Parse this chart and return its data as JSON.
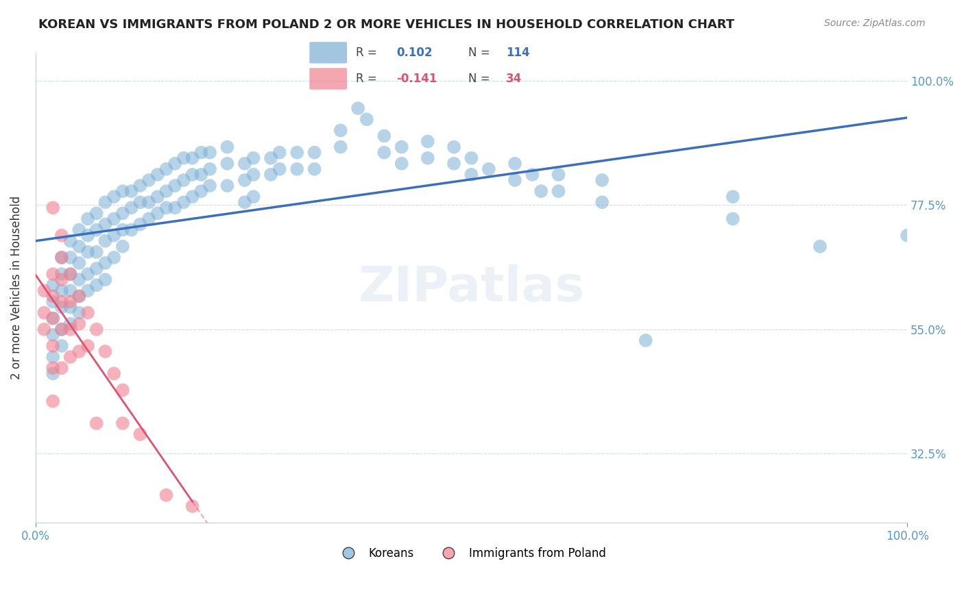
{
  "title": "KOREAN VS IMMIGRANTS FROM POLAND 2 OR MORE VEHICLES IN HOUSEHOLD CORRELATION CHART",
  "source": "Source: ZipAtlas.com",
  "ylabel": "2 or more Vehicles in Household",
  "xmin": 0.0,
  "xmax": 1.0,
  "ymin": 0.2,
  "ymax": 1.05,
  "yticks": [
    0.325,
    0.55,
    0.775,
    1.0
  ],
  "ytick_labels": [
    "32.5%",
    "55.0%",
    "77.5%",
    "100.0%"
  ],
  "xtick_labels": [
    "0.0%",
    "100.0%"
  ],
  "xticks": [
    0.0,
    1.0
  ],
  "korean_color": "#7bafd4",
  "poland_color": "#f08090",
  "trendline_korean_color": "#3a6fba",
  "trendline_poland_color": "#e05070",
  "watermark": "ZIPatlas",
  "korean_points": [
    [
      0.02,
      0.63
    ],
    [
      0.02,
      0.6
    ],
    [
      0.02,
      0.57
    ],
    [
      0.02,
      0.54
    ],
    [
      0.02,
      0.5
    ],
    [
      0.02,
      0.47
    ],
    [
      0.03,
      0.68
    ],
    [
      0.03,
      0.65
    ],
    [
      0.03,
      0.62
    ],
    [
      0.03,
      0.59
    ],
    [
      0.03,
      0.55
    ],
    [
      0.03,
      0.52
    ],
    [
      0.04,
      0.71
    ],
    [
      0.04,
      0.68
    ],
    [
      0.04,
      0.65
    ],
    [
      0.04,
      0.62
    ],
    [
      0.04,
      0.59
    ],
    [
      0.04,
      0.56
    ],
    [
      0.05,
      0.73
    ],
    [
      0.05,
      0.7
    ],
    [
      0.05,
      0.67
    ],
    [
      0.05,
      0.64
    ],
    [
      0.05,
      0.61
    ],
    [
      0.05,
      0.58
    ],
    [
      0.06,
      0.75
    ],
    [
      0.06,
      0.72
    ],
    [
      0.06,
      0.69
    ],
    [
      0.06,
      0.65
    ],
    [
      0.06,
      0.62
    ],
    [
      0.07,
      0.76
    ],
    [
      0.07,
      0.73
    ],
    [
      0.07,
      0.69
    ],
    [
      0.07,
      0.66
    ],
    [
      0.07,
      0.63
    ],
    [
      0.08,
      0.78
    ],
    [
      0.08,
      0.74
    ],
    [
      0.08,
      0.71
    ],
    [
      0.08,
      0.67
    ],
    [
      0.08,
      0.64
    ],
    [
      0.09,
      0.79
    ],
    [
      0.09,
      0.75
    ],
    [
      0.09,
      0.72
    ],
    [
      0.09,
      0.68
    ],
    [
      0.1,
      0.8
    ],
    [
      0.1,
      0.76
    ],
    [
      0.1,
      0.73
    ],
    [
      0.1,
      0.7
    ],
    [
      0.11,
      0.8
    ],
    [
      0.11,
      0.77
    ],
    [
      0.11,
      0.73
    ],
    [
      0.12,
      0.81
    ],
    [
      0.12,
      0.78
    ],
    [
      0.12,
      0.74
    ],
    [
      0.13,
      0.82
    ],
    [
      0.13,
      0.78
    ],
    [
      0.13,
      0.75
    ],
    [
      0.14,
      0.83
    ],
    [
      0.14,
      0.79
    ],
    [
      0.14,
      0.76
    ],
    [
      0.15,
      0.84
    ],
    [
      0.15,
      0.8
    ],
    [
      0.15,
      0.77
    ],
    [
      0.16,
      0.85
    ],
    [
      0.16,
      0.81
    ],
    [
      0.16,
      0.77
    ],
    [
      0.17,
      0.86
    ],
    [
      0.17,
      0.82
    ],
    [
      0.17,
      0.78
    ],
    [
      0.18,
      0.86
    ],
    [
      0.18,
      0.83
    ],
    [
      0.18,
      0.79
    ],
    [
      0.19,
      0.87
    ],
    [
      0.19,
      0.83
    ],
    [
      0.19,
      0.8
    ],
    [
      0.2,
      0.87
    ],
    [
      0.2,
      0.84
    ],
    [
      0.2,
      0.81
    ],
    [
      0.22,
      0.88
    ],
    [
      0.22,
      0.85
    ],
    [
      0.22,
      0.81
    ],
    [
      0.24,
      0.85
    ],
    [
      0.24,
      0.82
    ],
    [
      0.24,
      0.78
    ],
    [
      0.25,
      0.86
    ],
    [
      0.25,
      0.83
    ],
    [
      0.25,
      0.79
    ],
    [
      0.27,
      0.86
    ],
    [
      0.27,
      0.83
    ],
    [
      0.28,
      0.87
    ],
    [
      0.28,
      0.84
    ],
    [
      0.3,
      0.87
    ],
    [
      0.3,
      0.84
    ],
    [
      0.32,
      0.87
    ],
    [
      0.32,
      0.84
    ],
    [
      0.35,
      0.91
    ],
    [
      0.35,
      0.88
    ],
    [
      0.37,
      0.95
    ],
    [
      0.38,
      0.93
    ],
    [
      0.4,
      0.9
    ],
    [
      0.4,
      0.87
    ],
    [
      0.42,
      0.88
    ],
    [
      0.42,
      0.85
    ],
    [
      0.45,
      0.89
    ],
    [
      0.45,
      0.86
    ],
    [
      0.48,
      0.88
    ],
    [
      0.48,
      0.85
    ],
    [
      0.5,
      0.86
    ],
    [
      0.5,
      0.83
    ],
    [
      0.52,
      0.84
    ],
    [
      0.55,
      0.85
    ],
    [
      0.55,
      0.82
    ],
    [
      0.57,
      0.83
    ],
    [
      0.58,
      0.8
    ],
    [
      0.6,
      0.83
    ],
    [
      0.6,
      0.8
    ],
    [
      0.65,
      0.82
    ],
    [
      0.65,
      0.78
    ],
    [
      0.7,
      0.53
    ],
    [
      0.8,
      0.79
    ],
    [
      0.8,
      0.75
    ],
    [
      0.9,
      0.7
    ],
    [
      1.0,
      0.72
    ]
  ],
  "poland_points": [
    [
      0.01,
      0.62
    ],
    [
      0.01,
      0.58
    ],
    [
      0.01,
      0.55
    ],
    [
      0.02,
      0.77
    ],
    [
      0.02,
      0.65
    ],
    [
      0.02,
      0.61
    ],
    [
      0.02,
      0.57
    ],
    [
      0.02,
      0.52
    ],
    [
      0.02,
      0.48
    ],
    [
      0.02,
      0.42
    ],
    [
      0.03,
      0.72
    ],
    [
      0.03,
      0.68
    ],
    [
      0.03,
      0.64
    ],
    [
      0.03,
      0.6
    ],
    [
      0.03,
      0.55
    ],
    [
      0.03,
      0.48
    ],
    [
      0.04,
      0.65
    ],
    [
      0.04,
      0.6
    ],
    [
      0.04,
      0.55
    ],
    [
      0.04,
      0.5
    ],
    [
      0.05,
      0.61
    ],
    [
      0.05,
      0.56
    ],
    [
      0.05,
      0.51
    ],
    [
      0.06,
      0.58
    ],
    [
      0.06,
      0.52
    ],
    [
      0.07,
      0.55
    ],
    [
      0.07,
      0.38
    ],
    [
      0.08,
      0.51
    ],
    [
      0.09,
      0.47
    ],
    [
      0.1,
      0.44
    ],
    [
      0.1,
      0.38
    ],
    [
      0.12,
      0.36
    ],
    [
      0.15,
      0.25
    ],
    [
      0.18,
      0.23
    ]
  ]
}
